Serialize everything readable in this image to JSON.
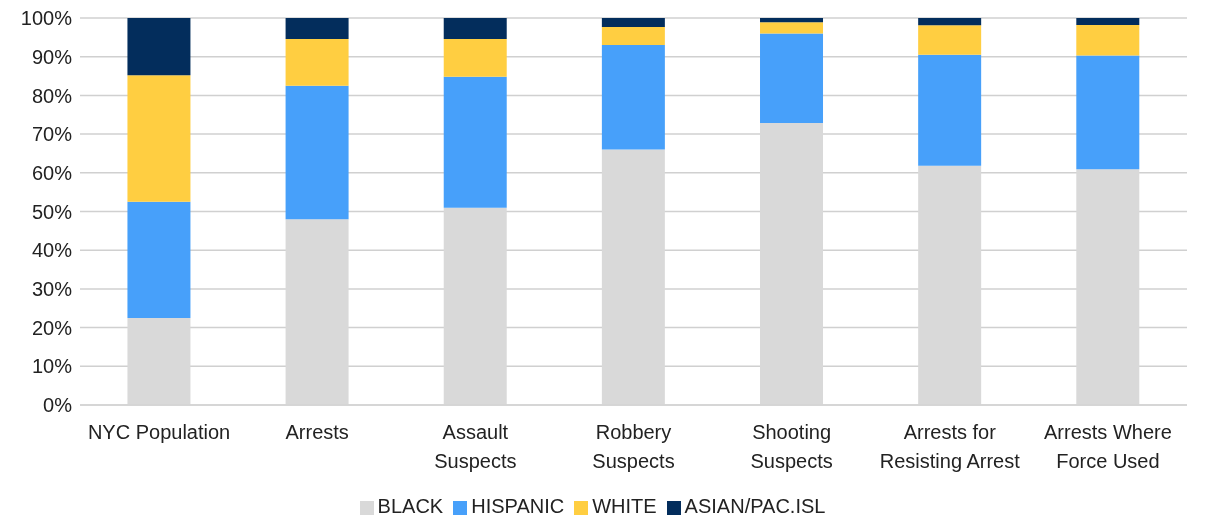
{
  "chart_data": {
    "type": "bar",
    "stacked": true,
    "categories": [
      "NYC Population",
      "Arrests",
      "Assault Suspects",
      "Robbery Suspects",
      "Shooting Suspects",
      "Arrests for Resisting Arrest",
      "Arrests Where Force Used"
    ],
    "series": [
      {
        "name": "BLACK",
        "color": "#d9d9d9",
        "values": [
          22.5,
          48,
          51,
          66,
          72.9,
          61.8,
          60.9
        ]
      },
      {
        "name": "HISPANIC",
        "color": "#47a0fa",
        "values": [
          30,
          34.5,
          33.8,
          27,
          23.1,
          28.7,
          29.4
        ]
      },
      {
        "name": "WHITE",
        "color": "#ffce41",
        "values": [
          32.7,
          12.1,
          9.8,
          4.7,
          2.9,
          7.6,
          7.9
        ]
      },
      {
        "name": "ASIAN/PAC.ISL",
        "color": "#032d5c",
        "values": [
          14.8,
          5.4,
          5.4,
          2.3,
          1.1,
          1.9,
          1.8
        ]
      }
    ],
    "ylim": [
      0,
      100
    ],
    "yticks": [
      {
        "value": 0,
        "label": "0%"
      },
      {
        "value": 10,
        "label": "10%"
      },
      {
        "value": 20,
        "label": "20%"
      },
      {
        "value": 30,
        "label": "30%"
      },
      {
        "value": 40,
        "label": "40%"
      },
      {
        "value": 50,
        "label": "50%"
      },
      {
        "value": 60,
        "label": "60%"
      },
      {
        "value": 70,
        "label": "70%"
      },
      {
        "value": 80,
        "label": "80%"
      },
      {
        "value": 90,
        "label": "90%"
      },
      {
        "value": 100,
        "label": "100%"
      }
    ],
    "grid": "y",
    "legend": "bottom"
  }
}
